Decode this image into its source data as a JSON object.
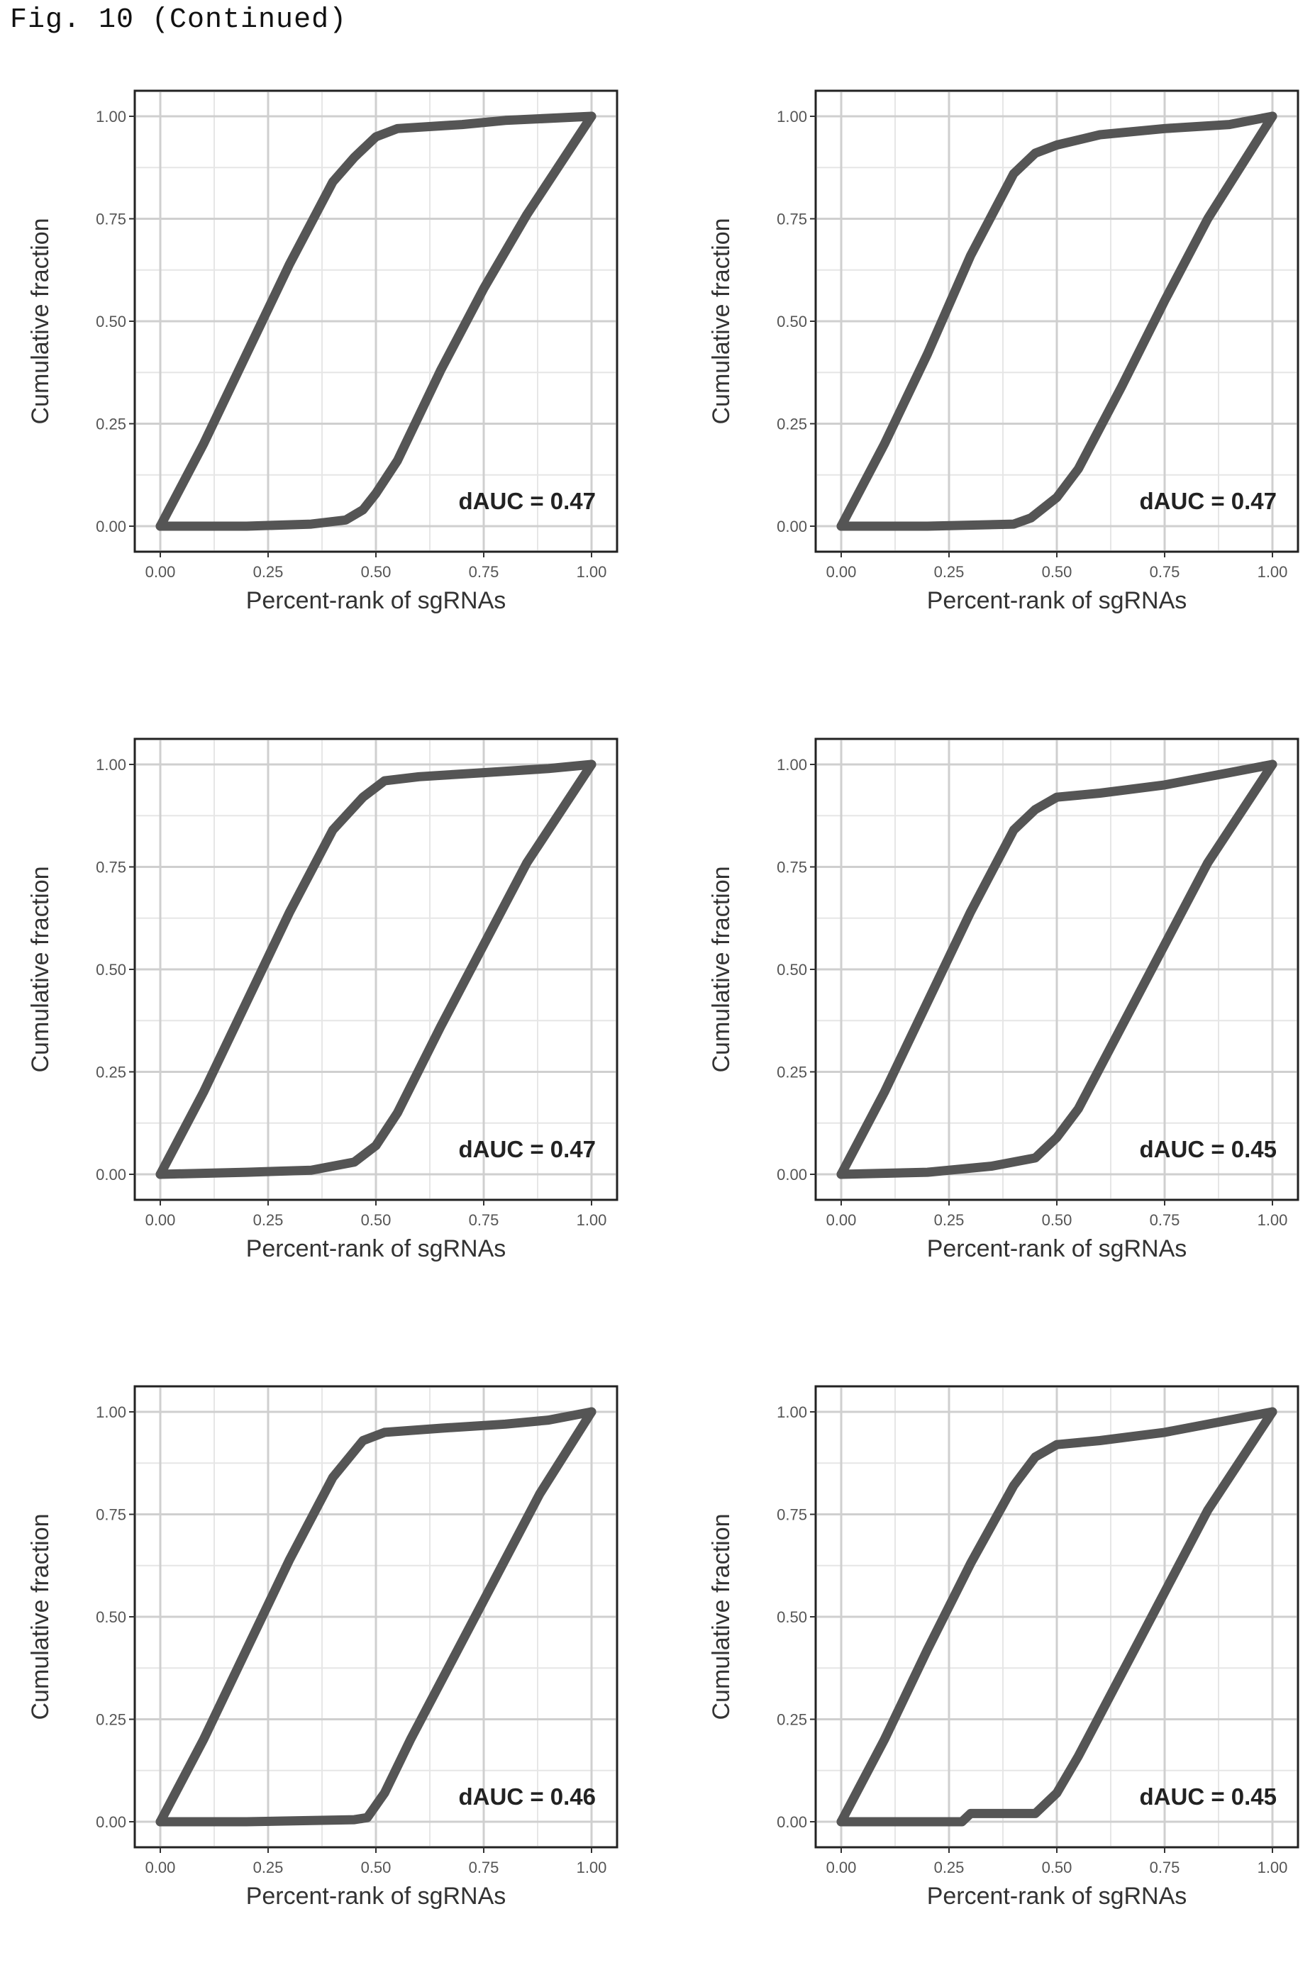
{
  "figure_label": "Fig. 10 (Continued)",
  "chart_data": [
    {
      "type": "line",
      "xlabel": "Percent-rank of sgRNAs",
      "ylabel": "Cumulative fraction",
      "xlim": [
        0,
        1
      ],
      "ylim": [
        0,
        1
      ],
      "x_ticks": [
        "0.00",
        "0.25",
        "0.50",
        "0.75",
        "1.00"
      ],
      "y_ticks": [
        "0.00",
        "0.25",
        "0.50",
        "0.75",
        "1.00"
      ],
      "grid": true,
      "annotation": "dAUC = 0.47",
      "series": [
        {
          "points": [
            [
              0,
              0
            ],
            [
              0.1,
              0.2
            ],
            [
              0.2,
              0.42
            ],
            [
              0.3,
              0.64
            ],
            [
              0.4,
              0.84
            ],
            [
              0.45,
              0.9
            ],
            [
              0.5,
              0.95
            ],
            [
              0.55,
              0.97
            ],
            [
              0.7,
              0.98
            ],
            [
              0.8,
              0.99
            ],
            [
              1,
              1
            ]
          ]
        },
        {
          "points": [
            [
              0,
              0
            ],
            [
              0.2,
              0
            ],
            [
              0.35,
              0.005
            ],
            [
              0.43,
              0.015
            ],
            [
              0.47,
              0.04
            ],
            [
              0.5,
              0.08
            ],
            [
              0.55,
              0.16
            ],
            [
              0.65,
              0.38
            ],
            [
              0.75,
              0.58
            ],
            [
              0.85,
              0.76
            ],
            [
              1,
              1
            ]
          ]
        }
      ]
    },
    {
      "type": "line",
      "xlabel": "Percent-rank of sgRNAs",
      "ylabel": "Cumulative fraction",
      "xlim": [
        0,
        1
      ],
      "ylim": [
        0,
        1
      ],
      "x_ticks": [
        "0.00",
        "0.25",
        "0.50",
        "0.75",
        "1.00"
      ],
      "y_ticks": [
        "0.00",
        "0.25",
        "0.50",
        "0.75",
        "1.00"
      ],
      "grid": true,
      "annotation": "dAUC = 0.47",
      "series": [
        {
          "points": [
            [
              0,
              0
            ],
            [
              0.1,
              0.2
            ],
            [
              0.2,
              0.42
            ],
            [
              0.3,
              0.66
            ],
            [
              0.4,
              0.86
            ],
            [
              0.45,
              0.91
            ],
            [
              0.5,
              0.93
            ],
            [
              0.6,
              0.955
            ],
            [
              0.75,
              0.97
            ],
            [
              0.9,
              0.98
            ],
            [
              1,
              1
            ]
          ]
        },
        {
          "points": [
            [
              0,
              0
            ],
            [
              0.2,
              0
            ],
            [
              0.4,
              0.005
            ],
            [
              0.44,
              0.02
            ],
            [
              0.5,
              0.07
            ],
            [
              0.55,
              0.14
            ],
            [
              0.65,
              0.34
            ],
            [
              0.75,
              0.55
            ],
            [
              0.85,
              0.75
            ],
            [
              1,
              1
            ]
          ]
        }
      ]
    },
    {
      "type": "line",
      "xlabel": "Percent-rank of sgRNAs",
      "ylabel": "Cumulative fraction",
      "xlim": [
        0,
        1
      ],
      "ylim": [
        0,
        1
      ],
      "x_ticks": [
        "0.00",
        "0.25",
        "0.50",
        "0.75",
        "1.00"
      ],
      "y_ticks": [
        "0.00",
        "0.25",
        "0.50",
        "0.75",
        "1.00"
      ],
      "grid": true,
      "annotation": "dAUC = 0.47",
      "series": [
        {
          "points": [
            [
              0,
              0
            ],
            [
              0.1,
              0.2
            ],
            [
              0.2,
              0.42
            ],
            [
              0.3,
              0.64
            ],
            [
              0.4,
              0.84
            ],
            [
              0.47,
              0.92
            ],
            [
              0.52,
              0.96
            ],
            [
              0.6,
              0.97
            ],
            [
              0.75,
              0.98
            ],
            [
              0.9,
              0.99
            ],
            [
              1,
              1
            ]
          ]
        },
        {
          "points": [
            [
              0,
              0
            ],
            [
              0.2,
              0.005
            ],
            [
              0.35,
              0.01
            ],
            [
              0.45,
              0.03
            ],
            [
              0.5,
              0.07
            ],
            [
              0.55,
              0.15
            ],
            [
              0.65,
              0.36
            ],
            [
              0.75,
              0.56
            ],
            [
              0.85,
              0.76
            ],
            [
              1,
              1
            ]
          ]
        }
      ]
    },
    {
      "type": "line",
      "xlabel": "Percent-rank of sgRNAs",
      "ylabel": "Cumulative fraction",
      "xlim": [
        0,
        1
      ],
      "ylim": [
        0,
        1
      ],
      "x_ticks": [
        "0.00",
        "0.25",
        "0.50",
        "0.75",
        "1.00"
      ],
      "y_ticks": [
        "0.00",
        "0.25",
        "0.50",
        "0.75",
        "1.00"
      ],
      "grid": true,
      "annotation": "dAUC = 0.45",
      "series": [
        {
          "points": [
            [
              0,
              0
            ],
            [
              0.1,
              0.2
            ],
            [
              0.2,
              0.42
            ],
            [
              0.3,
              0.64
            ],
            [
              0.4,
              0.84
            ],
            [
              0.45,
              0.89
            ],
            [
              0.5,
              0.92
            ],
            [
              0.6,
              0.93
            ],
            [
              0.75,
              0.95
            ],
            [
              0.9,
              0.98
            ],
            [
              1,
              1
            ]
          ]
        },
        {
          "points": [
            [
              0,
              0
            ],
            [
              0.2,
              0.005
            ],
            [
              0.35,
              0.02
            ],
            [
              0.45,
              0.04
            ],
            [
              0.5,
              0.09
            ],
            [
              0.55,
              0.16
            ],
            [
              0.65,
              0.36
            ],
            [
              0.75,
              0.56
            ],
            [
              0.85,
              0.76
            ],
            [
              1,
              1
            ]
          ]
        }
      ]
    },
    {
      "type": "line",
      "xlabel": "Percent-rank of sgRNAs",
      "ylabel": "Cumulative fraction",
      "xlim": [
        0,
        1
      ],
      "ylim": [
        0,
        1
      ],
      "x_ticks": [
        "0.00",
        "0.25",
        "0.50",
        "0.75",
        "1.00"
      ],
      "y_ticks": [
        "0.00",
        "0.25",
        "0.50",
        "0.75",
        "1.00"
      ],
      "grid": true,
      "annotation": "dAUC = 0.46",
      "series": [
        {
          "points": [
            [
              0,
              0
            ],
            [
              0.1,
              0.2
            ],
            [
              0.2,
              0.42
            ],
            [
              0.3,
              0.64
            ],
            [
              0.4,
              0.84
            ],
            [
              0.47,
              0.93
            ],
            [
              0.52,
              0.95
            ],
            [
              0.65,
              0.96
            ],
            [
              0.8,
              0.97
            ],
            [
              0.9,
              0.98
            ],
            [
              1,
              1
            ]
          ]
        },
        {
          "points": [
            [
              0,
              0
            ],
            [
              0.2,
              0
            ],
            [
              0.45,
              0.005
            ],
            [
              0.48,
              0.01
            ],
            [
              0.52,
              0.07
            ],
            [
              0.58,
              0.2
            ],
            [
              0.68,
              0.4
            ],
            [
              0.78,
              0.6
            ],
            [
              0.88,
              0.8
            ],
            [
              1,
              1
            ]
          ]
        }
      ]
    },
    {
      "type": "line",
      "xlabel": "Percent-rank of sgRNAs",
      "ylabel": "Cumulative fraction",
      "xlim": [
        0,
        1
      ],
      "ylim": [
        0,
        1
      ],
      "x_ticks": [
        "0.00",
        "0.25",
        "0.50",
        "0.75",
        "1.00"
      ],
      "y_ticks": [
        "0.00",
        "0.25",
        "0.50",
        "0.75",
        "1.00"
      ],
      "grid": true,
      "annotation": "dAUC = 0.45",
      "series": [
        {
          "points": [
            [
              0,
              0
            ],
            [
              0.1,
              0.2
            ],
            [
              0.2,
              0.42
            ],
            [
              0.3,
              0.63
            ],
            [
              0.4,
              0.82
            ],
            [
              0.45,
              0.89
            ],
            [
              0.5,
              0.92
            ],
            [
              0.6,
              0.93
            ],
            [
              0.75,
              0.95
            ],
            [
              0.9,
              0.98
            ],
            [
              1,
              1
            ]
          ]
        },
        {
          "points": [
            [
              0,
              0
            ],
            [
              0.28,
              0
            ],
            [
              0.3,
              0.02
            ],
            [
              0.45,
              0.02
            ],
            [
              0.5,
              0.07
            ],
            [
              0.55,
              0.16
            ],
            [
              0.65,
              0.36
            ],
            [
              0.75,
              0.56
            ],
            [
              0.85,
              0.76
            ],
            [
              1,
              1
            ]
          ]
        }
      ]
    }
  ]
}
